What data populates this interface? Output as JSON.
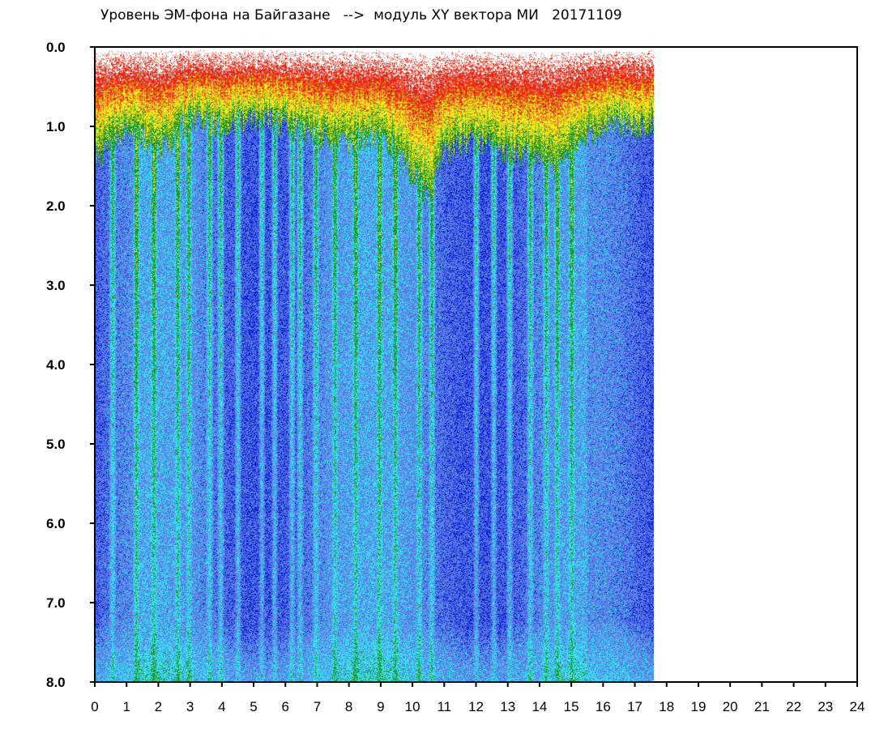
{
  "chart_data": {
    "type": "heatmap",
    "title": "Уровень ЭМ-фона на Байгазане   -->  модуль XY вектора МИ   20171109",
    "xlabel": "",
    "ylabel": "",
    "xlim": [
      0,
      24
    ],
    "ylim": [
      0,
      8
    ],
    "y_inverted": true,
    "data_x_extent": [
      0,
      17.6
    ],
    "x_ticks": [
      "0",
      "1",
      "2",
      "3",
      "4",
      "5",
      "6",
      "7",
      "8",
      "9",
      "10",
      "11",
      "12",
      "13",
      "14",
      "15",
      "16",
      "17",
      "18",
      "19",
      "20",
      "21",
      "22",
      "23",
      "24"
    ],
    "y_ticks": [
      "0.0",
      "1.0",
      "2.0",
      "3.0",
      "4.0",
      "5.0",
      "6.0",
      "7.0",
      "8.0"
    ],
    "grid": false,
    "colors": {
      "low": "#0a1ed2",
      "mid_low": "#5a7ae6",
      "mid": "#3cdcf0",
      "mid_high": "#1e9628",
      "high": "#f0e61e",
      "very_high": "#eb2814",
      "saturated": "#ffffff"
    },
    "intensity_profile": {
      "description_free": true,
      "x": [
        0,
        1,
        2,
        3,
        4,
        5,
        6,
        7,
        8,
        9,
        10,
        10.5,
        11,
        12,
        12.5,
        13,
        14,
        14.5,
        15,
        16,
        17,
        17.6
      ],
      "top_band_depth": [
        1.4,
        1.0,
        1.3,
        0.9,
        1.0,
        0.9,
        1.0,
        1.1,
        1.2,
        1.1,
        1.6,
        1.9,
        1.3,
        1.2,
        1.2,
        1.4,
        1.3,
        1.6,
        1.2,
        1.0,
        1.0,
        1.0
      ]
    },
    "vertical_streaks_x": [
      0.55,
      1.3,
      1.85,
      2.6,
      2.95,
      3.6,
      3.95,
      4.5,
      5.25,
      5.65,
      6.2,
      6.45,
      6.95,
      7.55,
      8.2,
      8.95,
      9.45,
      10.2,
      10.6,
      12.0,
      12.55,
      13.05,
      13.7,
      14.2,
      14.55,
      15.0
    ]
  }
}
